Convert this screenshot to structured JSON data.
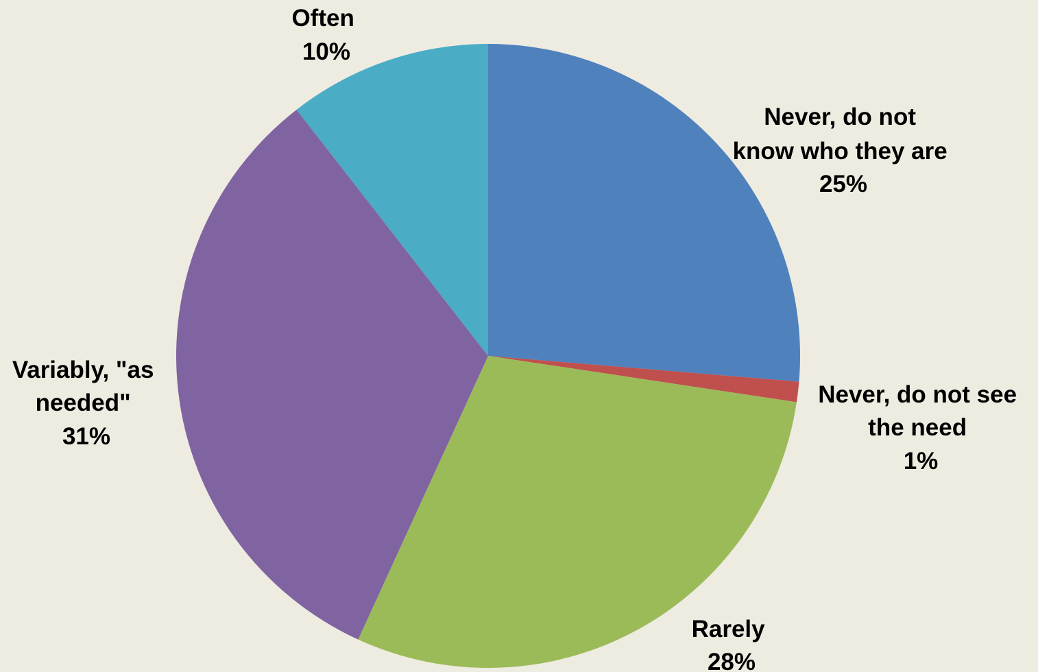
{
  "chart_data": {
    "type": "pie",
    "title": "",
    "start_angle_deg": 0,
    "direction": "clockwise",
    "slices": [
      {
        "name": "Never, do not know who they are",
        "label_lines": [
          "Never, do not",
          "know who they are"
        ],
        "pct_label": "25%",
        "value": 25,
        "color": "#4F81BD"
      },
      {
        "name": "Never, do not see the need",
        "label_lines": [
          "Never, do not see",
          "the need"
        ],
        "pct_label": "1%",
        "value": 1,
        "color": "#C0504D"
      },
      {
        "name": "Rarely",
        "label_lines": [
          "Rarely"
        ],
        "pct_label": "28%",
        "value": 28,
        "color": "#9BBB59"
      },
      {
        "name": "Variably, \"as needed\"",
        "label_lines": [
          "Variably, \"as",
          "needed\""
        ],
        "pct_label": "31%",
        "value": 31,
        "color": "#8064A2"
      },
      {
        "name": "Often",
        "label_lines": [
          "Often"
        ],
        "pct_label": "10%",
        "value": 10,
        "color": "#4BACC6"
      }
    ]
  }
}
